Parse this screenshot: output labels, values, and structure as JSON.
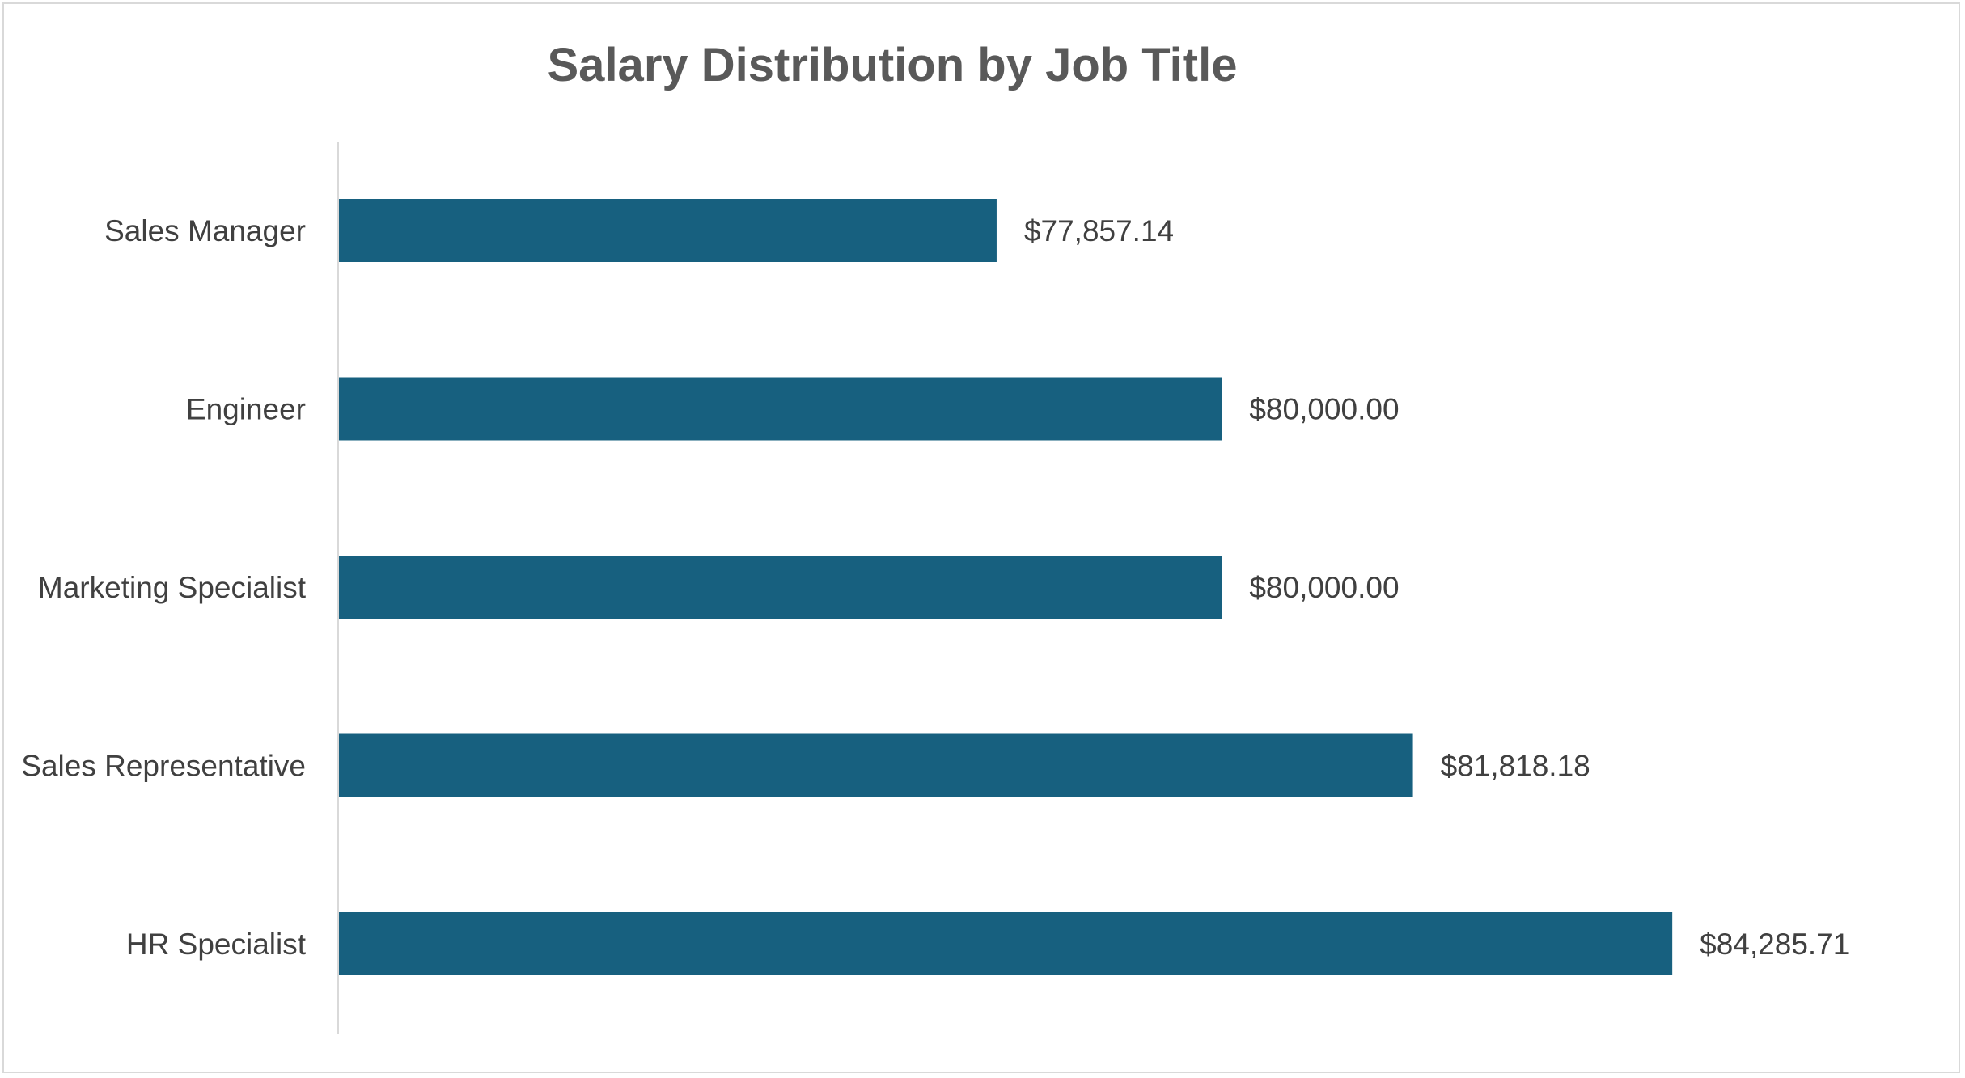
{
  "chart_data": {
    "type": "bar",
    "orientation": "horizontal",
    "title": "Salary Distribution by Job Title",
    "categories": [
      "Sales Manager",
      "Engineer",
      "Marketing Specialist",
      "Sales Representative",
      "HR Specialist"
    ],
    "values": [
      77857.14,
      80000.0,
      80000.0,
      81818.18,
      84285.71
    ],
    "data_labels": [
      "$77,857.14",
      "$80,000.00",
      "$80,000.00",
      "$81,818.18",
      "$84,285.71"
    ],
    "xlim": [
      71600,
      84500
    ],
    "grid": false,
    "legend": "none",
    "bar_color": "#17607f",
    "axis_color": "#d9d9d9"
  }
}
